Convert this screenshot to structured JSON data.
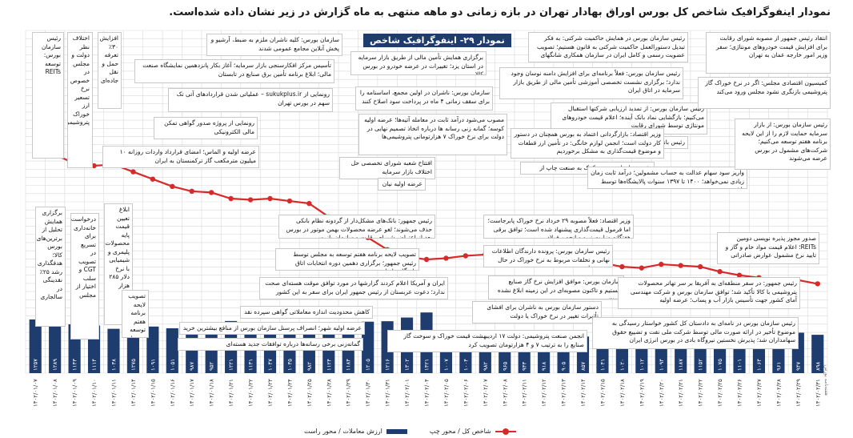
{
  "page": {
    "title": "نمودار اینفوگرافیک شاخص کل بورس اوراق بهادار تهران در بازه زمانی دو ماهه منتهی به ماه گزارش در زیر نشان داده شده‌است.",
    "caption": "نمودار ۲۹- اینفوگرافیک شاخص",
    "credit": "هفته‌نامه بورس"
  },
  "legend": {
    "line_label": "شاخص کل / محور چپ",
    "bar_label": "ارزش معاملات / محور راست"
  },
  "colors": {
    "bars": "#1f3c6e",
    "line": "#d72a2a",
    "grid": "#d9d9d9"
  },
  "chart_data": {
    "type": "bar",
    "x": [
      "۱۴۰۲/۰۱/۰۷",
      "۱۴۰۲/۰۱/۰۸",
      "۱۴۰۲/۰۱/۰۹",
      "۱۴۰۲/۰۱/۱۰",
      "۱۴۰۲/۰۱/۱۱",
      "۱۴۰۲/۰۱/۱۴",
      "۱۴۰۲/۰۱/۱۵",
      "۱۴۰۲/۰۱/۱۶",
      "۱۴۰۲/۰۱/۱۷",
      "۱۴۰۲/۰۱/۱۸",
      "۱۴۰۲/۰۱/۲۱",
      "۱۴۰۲/۰۱/۲۲",
      "۱۴۰۲/۰۱/۲۳",
      "۱۴۰۲/۰۱/۲۴",
      "۱۴۰۲/۰۱/۲۵",
      "۱۴۰۲/۰۱/۲۸",
      "۱۴۰۲/۰۱/۲۹",
      "۱۴۰۲/۰۱/۳۰",
      "۱۴۰۲/۰۱/۳۱",
      "۱۴۰۲/۰۲/۰۱",
      "۱۴۰۲/۰۲/۰۴",
      "۱۴۰۲/۰۲/۰۵",
      "۱۴۰۲/۰۲/۰۶",
      "۱۴۰۲/۰۲/۰۷",
      "۱۴۰۲/۰۲/۰۸",
      "۱۴۰۲/۰۲/۱۱",
      "۱۴۰۲/۰۲/۱۲",
      "۱۴۰۲/۰۲/۱۳",
      "۱۴۰۲/۰۲/۱۴",
      "۱۴۰۲/۰۲/۱۵",
      "۱۴۰۲/۰۲/۱۸",
      "۱۴۰۲/۰۲/۱۹",
      "۱۴۰۲/۰۲/۲۰",
      "۱۴۰۲/۰۲/۲۱",
      "۱۴۰۲/۰۲/۲۲",
      "۱۴۰۲/۰۲/۲۵",
      "۱۴۰۲/۰۲/۲۶",
      "۱۴۰۲/۰۲/۲۷",
      "۱۴۰۲/۰۲/۲۸",
      "۱۴۰۲/۰۲/۲۹",
      "۱۴۰۲/۰۲/۳۱"
    ],
    "bar_values": [
      1257,
      1289,
      1143,
      1114,
      1038,
      1275,
      1091,
      1051,
      987,
      952,
      1221,
      1131,
      1047,
      1035,
      982,
      1124,
      1184,
      1205,
      1216,
      1302,
      1421,
      1007,
      1004,
      982,
      965,
      943,
      918,
      905,
      857,
      1041,
      1020,
      1012,
      1094,
      1187,
      1152,
      1075,
      1101,
      1064,
      961,
      947,
      898
    ],
    "bar_labels": [
      "۱۲۵۷",
      "۱۲۸۹",
      "۱۱۴۳",
      "۱۱۱۴",
      "۱۰۳۸",
      "۱۲۷۵",
      "۱۰۹۱",
      "۱۰۵۱",
      "۹۸۷",
      "۹۵۲",
      "۱۲۲۱",
      "۱۱۳۱",
      "۱۰۴۷",
      "۱۰۳۵",
      "۹۸۲",
      "۱۱۲۴",
      "۱۱۸۴",
      "۱۲۰۵",
      "۱۲۱۶",
      "۱۳۰۲",
      "۱۴۲۱",
      "۱۰۰۷",
      "۱۰۰۴",
      "۹۸۲",
      "۹۶۵",
      "۹۴۳",
      "۹۱۸",
      "۹۰۵",
      "۸۵۷",
      "۱۰۴۱",
      "۱۰۲۰",
      "۱۰۱۲",
      "۱۰۹۴",
      "۱۱۸۷",
      "۱۱۵۲",
      "۱۰۷۵",
      "۱۱۰۱",
      "۱۰۶۴",
      "۹۶۱",
      "۹۴۷",
      "۸۹۸"
    ],
    "line_values": [
      2335000,
      2336000,
      2329000,
      2327000,
      2328000,
      2322000,
      2316000,
      2310000,
      2306000,
      2305000,
      2300000,
      2299000,
      2300000,
      2298000,
      2296000,
      2285000,
      2275000,
      2268000,
      2258000,
      2252000,
      2250000,
      2251000,
      2253000,
      2254000,
      2253000,
      2250000,
      2249000,
      2250000,
      2248000,
      2247000,
      2244000,
      2243000,
      2246000,
      2245000,
      2244000,
      2240000,
      2237000,
      2235000,
      2232000,
      2233000,
      2230000
    ],
    "bar_range": [
      0,
      1500
    ],
    "line_range": [
      2150000,
      2400000
    ],
    "grid": true,
    "legend_position": "bottom-center"
  },
  "annotations": [
    {
      "id": "a1",
      "text": "انتقاد رئیس جمهور از مصوبه شورای رقابت برای افزایش قیمت خودروهای مونتاژی؛ سفر وزیر امور خارجه عمان به تهران"
    },
    {
      "id": "a2",
      "text": "رئیس سازمان بورس در همایش حاکمیت شرکتی: به فکر تبدیل دستورالعمل حاکمیت شرکتی به قانون هستیم؛ تصویب عضویت رسمی و کامل ایران در سازمان همکاری شانگهای"
    },
    {
      "id": "a3",
      "text": "برگزاری همایش تأمین مالی از طریق بازار سرمایه در استان یزد؛ تغییرات در عرضه خودرو در بورس کالا"
    },
    {
      "id": "a4",
      "text": "سازمان بورس: کلیه ناشران ملزم به ضبط، آرشیو و پخش آنلاین مجامع عمومی شدند"
    },
    {
      "id": "a5",
      "text": "تأسیس مرکز افکارسنجی بازار سرمایه؛ آغاز بکار پانزدهمین نمایشگاه صنعت مالی؛ ابلاغ برنامه تأمین برق صنایع در تابستان"
    },
    {
      "id": "a6",
      "text": "رونمایی از sukukplus.ir – عملیاتی شدن قراردادهای آتی تک سهم در بورس تهران"
    },
    {
      "id": "a7",
      "text": "رونمایی از پروژه صدور گواهی تمکن مالی الکترونیکی"
    },
    {
      "id": "a8",
      "text": "عرضه اولیه و الماس؛ امضای قرارداد واردات روزانه ۱۰ میلیون مترمکعب گاز ترکمنستان به ایران"
    },
    {
      "id": "a9",
      "text": "سازمان بورس: ناشران در اولین مجمع، اساسنامه را برای سقف زمانی ۴ ماه در پرداخت سود اصلاح کنند"
    },
    {
      "id": "a10",
      "text": "رئیس سازمان بورس: فعلاً برنامه‌ای برای افزایش دامنه نوسان وجود ندارد؛ برگزاری نشست تخصصی آموزشی تأمین مالی از طریق بازار سرمایه در اتاق ایران"
    },
    {
      "id": "a11",
      "text": "رئیس سازمان بورس: از تمدید ارزیابی شرکتها استقبال می‌کنیم؛ بازگشایی نماد بانک آینده؛ اعلام قیمت خودروهای مونتاژی توسط شورای رقابت"
    },
    {
      "id": "a12",
      "text": "رئیس بانک مرکزی: امکان لغو آزادسازی نرخ سود بانکی وجود ندارد"
    },
    {
      "id": "a13",
      "text": "کمیسیون اقتصادی مجلس: اگر در نرخ خوراک گاز پتروشیمی بازنگری نشود مجلس ورود می‌کند"
    },
    {
      "id": "a14",
      "text": "مصوب می‌شود درآمد ثابت در معامله آتیه‌ها؛ عرضه اولیه کوسه؛ گمانه زنی رسانه ها درباره اتخاذ تصمیم نهایی در دولت برای نرخ خوراک ۷ هزارتومانی پتروشیمی‌ها"
    },
    {
      "id": "a15",
      "text": "وزیر اقتصاد: بازارگردانی اعتماد به بورس همچنان در دستور کار دولت است؛ انجمن لوازم خانگی: در تأمین ارز قطعات و موضوع قیمت‌گذاری به مشکل برخوردیم"
    },
    {
      "id": "a16",
      "text": "رئیس سازمان بورس: کمک به صنعت چاپ از طریق بازار سرمایه"
    },
    {
      "id": "a17",
      "text": "افتتاح شعبه شورای تخصصی حل اختلاف بازار سرمایه"
    },
    {
      "id": "a18",
      "text": "عرضه اولیه نیان"
    },
    {
      "id": "a19",
      "text": "واریز سود سهام عدالت به حساب مشمولین؛ درآمد ثابت زمان زیادی نمی‌خواهد؛ ۱۴۰۰ تا ۱۳۹۷ سنوات پالایشگاه‌ها توسط ناشر بورس"
    },
    {
      "id": "a20",
      "text": "رئیس سازمان بورس: از بازار سرمایه حمایت لازم را از این لایحه برنامه هفتم توسعه می‌کنیم؛ شرکت‌های مشمول در بورس عرضه می‌شوند"
    },
    {
      "id": "a21",
      "text": "رئیس جمهور: بانک‌های مشکل‌دار از گردونه نظام بانکی حذف می‌شوند؛ لغو عرضه محصولات بهمن موتور در بورس بعد از اعتراض شورای رقابت و سازمان بازرسی"
    },
    {
      "id": "a22",
      "text": "وزیر اقتصاد: فعلاً مصوبه ۲۹ خرداد نرخ خوراک پابرجاست؛ اما فرمول قیمت‌گذاری پیشنهاد شده است؛ توافق برقی هفتگانه وزارت نیرو و انجمن فولاد"
    },
    {
      "id": "a23",
      "text": "صدور مجوز پذیره نویسی دومین REITs؛ اعلام قیمت مواد خام و گاز و تایید نرخ مشمول عوارض صادراتی"
    },
    {
      "id": "a24",
      "text": "تصویب لایحه برنامه هفتم توسعه به مجلس توسط رئیس جمهور؛ برگزاری دهمین دوره انتخابات اتاق بازرگانی ایران"
    },
    {
      "id": "a25",
      "text": "رئیس سازمان بورس: پرونده دارندگان اطلاعات نهانی و تخلفات مربوط به نرخ خوراک در حال بررسی است"
    },
    {
      "id": "a26",
      "text": "ایران و آمریکا اعلام کردند گزارشها در مورد توافق موقت هسته‌ای صحت ندارد؛ دعوت عربستان از رئیس جمهور ایران برای سفر به این کشور"
    },
    {
      "id": "a27",
      "text": "سازمان بورس: موافق افزایش نرخ گاز صنایع نیستیم و تاکنون مصوبه‌ای در این زمینه ابلاغ نشده است"
    },
    {
      "id": "a28",
      "text": "کاهش محدودیت اندازه معاملاتی گواهی سپرده نقد خانم"
    },
    {
      "id": "a29",
      "text": "دستور سازمان بورس به ناشران برای افشای تأثیرات تغییر در نرخ خوراک یا دولت"
    },
    {
      "id": "a30",
      "text": "عرضه اولیه شهر؛ انصراف پرسنل سازمان بورس از منافع بیشترین خرید خودرو"
    },
    {
      "id": "a31",
      "text": "انجمن صنعت پتروشیمی: دولت ۱۷ اردیبهشت قیمت خوراک و سوخت گاز صنایع را به ترتیب ۷ و ۴ هزارتومان تصویب کرد"
    },
    {
      "id": "a32",
      "text": "گمانه‌زنی برخی رسانه‌ها درباره توافقات جدید هسته‌ای"
    },
    {
      "id": "a33",
      "text": "رئیس جمهور: در سفر منطقه‌ای به آفریقا بر سر تهاتر محصولات پتروشیمی با کالا تأکید شد؛ توافق سازمان بورس و شرکت مهندسی آمای کشور جهت تأسیس بازار آب و پساب؛ عرضه اولیه"
    },
    {
      "id": "a34",
      "text": "رئیس سازمان بورس در نامه‌ای به دادستان کل کشور خواستار رسیدگی به موضوع تأخیر در ارائه صورت مالی توسط شرکت ملی نفت و تضییع حقوق سهامداران شد؛ پذیرش نخستین نیروگاه بادی در بورس انرژی ایران"
    },
    {
      "id": "l1",
      "text": "رئیس سازمان بورس: توسعه REITs"
    },
    {
      "id": "l2",
      "text": "اختلاف نظر دولت و مجلس در خصوص نرخ تسعیر ارز خوراک پتروشیمی"
    },
    {
      "id": "l3",
      "text": "افزایش ۳۰٪ تعرفه حمل و نقل جاده‌ای"
    },
    {
      "id": "l4",
      "text": "برگزاری همایش تحلیل از برترین‌های بورس کالا؛ هدفگذاری رشد ۲۵٪ نقدینگی در سالجاری"
    },
    {
      "id": "l5",
      "text": "درخواست خانه‌داری برای تسریع در تصویب CGT و سلب اختیار از مجلس"
    },
    {
      "id": "l6",
      "text": "ابلاغ تعیین قیمت پایه محصولات پلیمری و شیمیایی با نرخ دلار ۲۸۵ هزار"
    },
    {
      "id": "l7",
      "text": "تصویب لایحه برنامه هفتم توسعه در دولت"
    }
  ]
}
